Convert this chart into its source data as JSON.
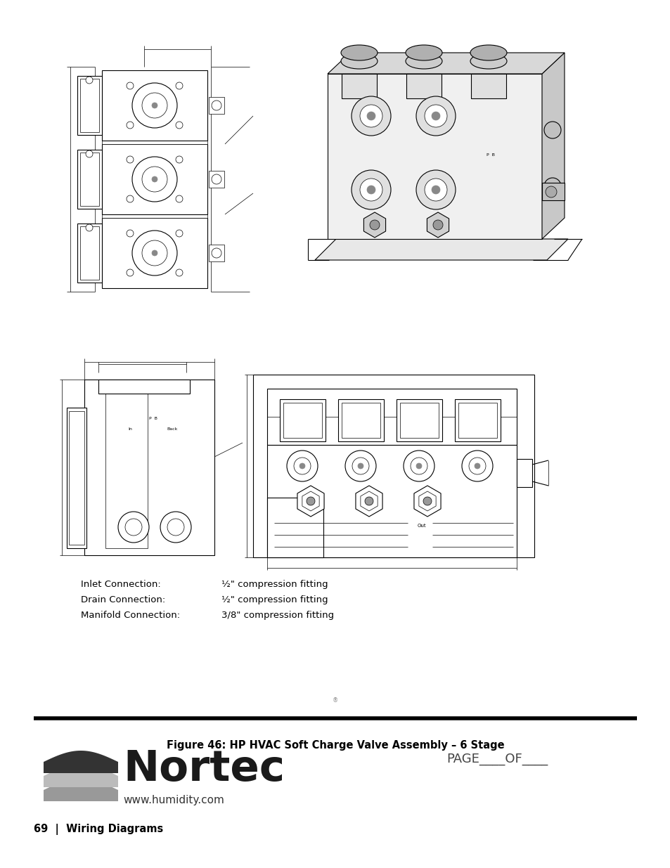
{
  "page_bg": "#ffffff",
  "figure_caption": "Figure 46: HP HVAC Soft Charge Valve Assembly – 6 Stage",
  "page_label": "69  |  Wiring Diagrams",
  "website": "www.humidity.com",
  "connection_lines": [
    [
      "Inlet Connection:",
      "½\" compression fitting"
    ],
    [
      "Drain Connection:",
      "½\" compression fitting"
    ],
    [
      "Manifold Connection:",
      "3/8\" compression fitting"
    ]
  ],
  "lc": "#000000",
  "lw_thin": 0.5,
  "lw_med": 0.8,
  "lw_thick": 1.0
}
